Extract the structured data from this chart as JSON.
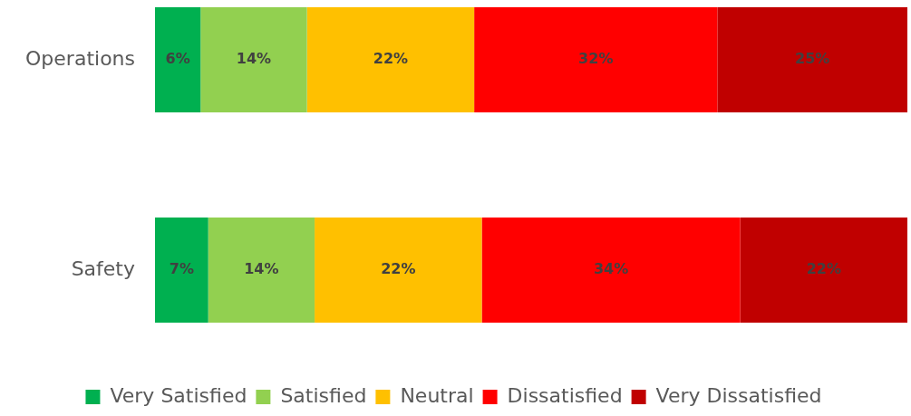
{
  "chart_data": {
    "type": "bar",
    "orientation": "horizontal",
    "stacked": true,
    "categories": [
      "Operations",
      "Safety"
    ],
    "series": [
      {
        "name": "Very Satisfied",
        "color": "#00b050",
        "values": [
          6,
          7
        ],
        "value_labels": [
          "6%",
          "7%"
        ]
      },
      {
        "name": "Satisfied",
        "color": "#92d050",
        "values": [
          14,
          14
        ],
        "value_labels": [
          "14%",
          "14%"
        ]
      },
      {
        "name": "Neutral",
        "color": "#ffc000",
        "values": [
          22,
          22
        ],
        "value_labels": [
          "22%",
          "22%"
        ]
      },
      {
        "name": "Dissatisfied",
        "color": "#ff0000",
        "values": [
          32,
          34
        ],
        "value_labels": [
          "32%",
          "34%"
        ]
      },
      {
        "name": "Very Dissatisfied",
        "color": "#c00000",
        "values": [
          25,
          22
        ],
        "value_labels": [
          "25%",
          "22%"
        ]
      }
    ],
    "legend": "bottom",
    "tick_labels": "y"
  }
}
